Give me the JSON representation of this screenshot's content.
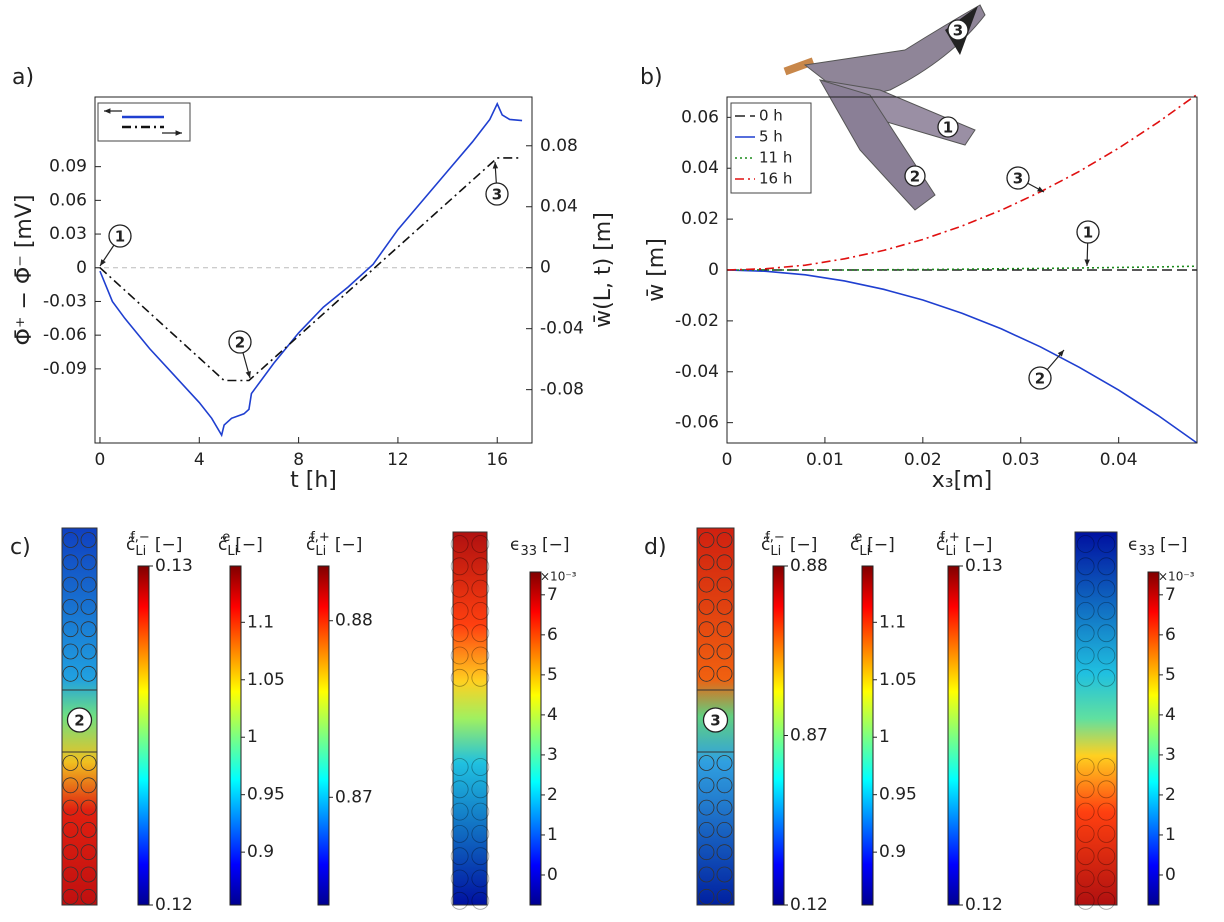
{
  "chart_data": [
    {
      "type": "line",
      "panel_label": "a)",
      "xlabel": "t [h]",
      "ylabel": "Φ̄⁺ − Φ̄⁻ [mV]",
      "y2label": "w̄(L, t) [m]",
      "xlim": [
        -0.2,
        17.4
      ],
      "xticks": [
        0,
        4,
        8,
        12,
        16
      ],
      "ylim": [
        -0.156,
        0.152
      ],
      "yticks": [
        0.09,
        0.06,
        0.03,
        0,
        -0.03,
        -0.06,
        -0.09
      ],
      "y2lim": [
        -0.115,
        0.112
      ],
      "y2ticks": [
        0.08,
        0.04,
        0,
        -0.04,
        -0.08
      ],
      "zero_line": true,
      "series": [
        {
          "color": "#1f3fd0",
          "dash": "none",
          "x": [
            0,
            0.5,
            1,
            2,
            3,
            4,
            4.5,
            4.9,
            5.0,
            5.3,
            5.8,
            6.0,
            6.1,
            7,
            8,
            9,
            10,
            11,
            12,
            13,
            14,
            15,
            15.7,
            16,
            16.2,
            16.5,
            17
          ],
          "values": [
            -0.003,
            -0.03,
            -0.045,
            -0.072,
            -0.096,
            -0.12,
            -0.134,
            -0.149,
            -0.14,
            -0.134,
            -0.13,
            -0.126,
            -0.112,
            -0.085,
            -0.058,
            -0.035,
            -0.017,
            0.003,
            0.034,
            0.06,
            0.086,
            0.112,
            0.132,
            0.146,
            0.136,
            0.132,
            0.131
          ]
        },
        {
          "color": "#111111",
          "dash": "9 4 2 4",
          "axis": "y2",
          "x": [
            0,
            5,
            6,
            16,
            17
          ],
          "values": [
            0,
            -0.074,
            -0.074,
            0.072,
            0.072
          ]
        }
      ],
      "annotations": [
        "1",
        "2",
        "3"
      ]
    },
    {
      "type": "line",
      "panel_label": "b)",
      "xlabel": "x₃[m]",
      "ylabel": "w̄ [m]",
      "xlim": [
        0,
        0.048
      ],
      "xticks": [
        0,
        0.01,
        0.02,
        0.03,
        0.04
      ],
      "ylim": [
        -0.068,
        0.068
      ],
      "yticks": [
        0.06,
        0.04,
        0.02,
        0,
        -0.02,
        -0.04,
        -0.06
      ],
      "x": [
        0,
        0.004,
        0.008,
        0.012,
        0.016,
        0.02,
        0.024,
        0.028,
        0.032,
        0.036,
        0.04,
        0.044,
        0.048
      ],
      "series": [
        {
          "name": "0 h",
          "color": "#222222",
          "dash": "10 5",
          "values": [
            0,
            0,
            0,
            0,
            0,
            0,
            0,
            0,
            0,
            0,
            0,
            0,
            0
          ]
        },
        {
          "name": "5 h",
          "color": "#1f3fd0",
          "dash": "none",
          "values": [
            0,
            -0.0005,
            -0.0019,
            -0.0043,
            -0.0076,
            -0.0118,
            -0.017,
            -0.0231,
            -0.0302,
            -0.0383,
            -0.0472,
            -0.0571,
            -0.068
          ]
        },
        {
          "name": "11 h",
          "color": "#1a8a1a",
          "dash": "2 3",
          "values": [
            0,
            0,
            0,
            0,
            0.0001,
            0.0002,
            0.0003,
            0.0005,
            0.0006,
            0.0008,
            0.001,
            0.0012,
            0.0015
          ]
        },
        {
          "name": "16 h",
          "color": "#e01010",
          "dash": "9 4 2 4",
          "values": [
            0,
            0.0005,
            0.0019,
            0.0044,
            0.0077,
            0.012,
            0.0173,
            0.0235,
            0.0307,
            0.0388,
            0.0479,
            0.058,
            0.069
          ]
        }
      ],
      "annotations": [
        "1",
        "2",
        "3"
      ],
      "inset_labels": [
        "3",
        "1",
        "2"
      ]
    }
  ],
  "fields": [
    {
      "panel_label": "c)",
      "marker": "2",
      "colorbars": [
        {
          "symbol": "c̃",
          "sub": "Li",
          "sup": "f,−",
          "unit": "[−]",
          "lim": [
            0.12,
            0.13
          ],
          "ticks": [
            0.13,
            0.12
          ]
        },
        {
          "symbol": "c̃",
          "sub": "Li",
          "sup": "e",
          "unit": "[−]",
          "lim": [
            0.854,
            1.149
          ],
          "ticks": [
            1.1,
            1.05,
            1,
            0.95,
            0.9
          ]
        },
        {
          "symbol": "c̃",
          "sub": "Li",
          "sup": "f,+",
          "unit": "[−]",
          "lim": [
            0.8639,
            0.8831
          ],
          "ticks": [
            0.88,
            0.87
          ]
        },
        {
          "symbol": "ϵ",
          "sub": "33",
          "unit": "[−]",
          "multiplier": "×10⁻³",
          "lim": [
            -0.75,
            7.57
          ],
          "ticks": [
            7,
            6,
            5,
            4,
            3,
            2,
            1,
            0
          ]
        }
      ]
    },
    {
      "panel_label": "d)",
      "marker": "3",
      "colorbars": [
        {
          "symbol": "c̃",
          "sub": "Li",
          "sup": "f,−",
          "unit": "[−]",
          "ticks": [
            0.88,
            0.87,
            0.12
          ]
        },
        {
          "symbol": "c̃",
          "sub": "Li",
          "sup": "e",
          "unit": "[−]",
          "lim": [
            0.854,
            1.149
          ],
          "ticks": [
            1.1,
            1.05,
            1,
            0.95,
            0.9
          ]
        },
        {
          "symbol": "c̃",
          "sub": "Li",
          "sup": "f,+",
          "unit": "[−]",
          "lim": [
            0.12,
            0.13
          ],
          "ticks": [
            0.13,
            0.12
          ]
        },
        {
          "symbol": "ϵ",
          "sub": "33",
          "unit": "[−]",
          "multiplier": "×10⁻³",
          "lim": [
            -0.75,
            7.57
          ],
          "ticks": [
            7,
            6,
            5,
            4,
            3,
            2,
            1,
            0
          ]
        }
      ]
    }
  ]
}
